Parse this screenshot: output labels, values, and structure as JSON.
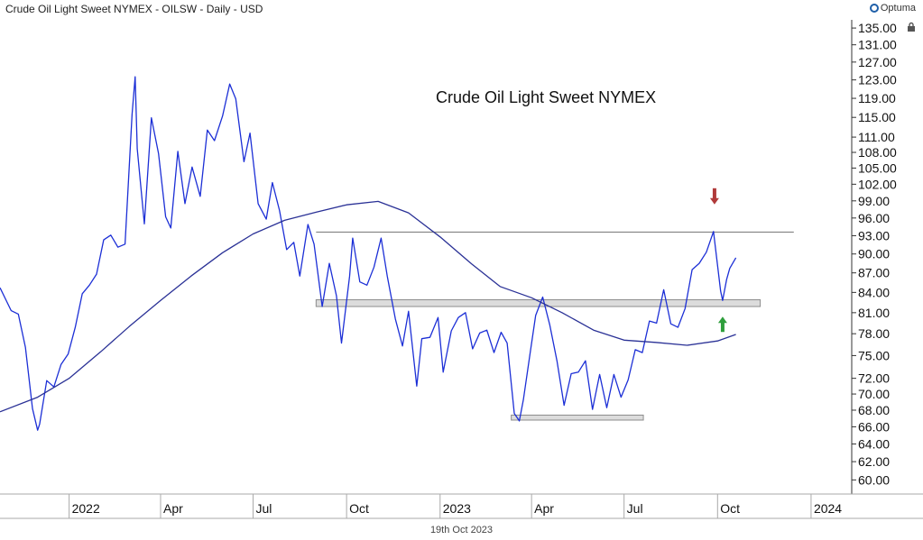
{
  "header": {
    "title": "Crude Oil Light Sweet NYMEX - OILSW - Daily - USD",
    "logo_text": "Optuma",
    "footer_date": "19th Oct 2023"
  },
  "colors": {
    "price": "#1c2fd6",
    "moving_average": "#2a3196",
    "resistance_line": "#888888",
    "support_band_fill": "#dcdcdc",
    "support_band_stroke": "#8c8c8c",
    "down_arrow": "#b03a3a",
    "up_arrow": "#2e9e3c"
  },
  "chart_data": {
    "type": "line",
    "title": "Crude Oil Light Sweet NYMEX",
    "xlabel": "",
    "ylabel": "",
    "y_scale": "log",
    "ylim": [
      58.5,
      137
    ],
    "xlim": [
      "2021-10-25",
      "2024-02-10"
    ],
    "y_ticks": [
      "60.00",
      "62.00",
      "64.00",
      "66.00",
      "68.00",
      "70.00",
      "72.00",
      "75.00",
      "78.00",
      "81.00",
      "84.00",
      "87.00",
      "90.00",
      "93.00",
      "96.00",
      "99.00",
      "102.00",
      "105.00",
      "108.00",
      "111.00",
      "115.00",
      "119.00",
      "123.00",
      "127.00",
      "131.00",
      "135.00"
    ],
    "x_ticks": [
      {
        "date": "2022-01-01",
        "label": "2022"
      },
      {
        "date": "2022-04-01",
        "label": "Apr"
      },
      {
        "date": "2022-07-01",
        "label": "Jul"
      },
      {
        "date": "2022-10-01",
        "label": "Oct"
      },
      {
        "date": "2023-01-01",
        "label": "2023"
      },
      {
        "date": "2023-04-01",
        "label": "Apr"
      },
      {
        "date": "2023-07-01",
        "label": "Jul"
      },
      {
        "date": "2023-10-01",
        "label": "Oct"
      },
      {
        "date": "2024-01-01",
        "label": "2024"
      }
    ],
    "series": [
      {
        "kind": "price",
        "points": [
          [
            "2021-10-25",
            84.7
          ],
          [
            "2021-11-05",
            81.3
          ],
          [
            "2021-11-12",
            80.8
          ],
          [
            "2021-11-19",
            76.1
          ],
          [
            "2021-11-26",
            68.2
          ],
          [
            "2021-12-01",
            65.6
          ],
          [
            "2021-12-03",
            66.3
          ],
          [
            "2021-12-10",
            71.7
          ],
          [
            "2021-12-17",
            70.9
          ],
          [
            "2021-12-24",
            73.8
          ],
          [
            "2021-12-31",
            75.2
          ],
          [
            "2022-01-07",
            78.9
          ],
          [
            "2022-01-14",
            83.8
          ],
          [
            "2022-01-21",
            85.1
          ],
          [
            "2022-01-28",
            86.8
          ],
          [
            "2022-02-04",
            92.3
          ],
          [
            "2022-02-11",
            93.1
          ],
          [
            "2022-02-18",
            91.1
          ],
          [
            "2022-02-25",
            91.6
          ],
          [
            "2022-03-04",
            115.7
          ],
          [
            "2022-03-07",
            123.7
          ],
          [
            "2022-03-09",
            108.7
          ],
          [
            "2022-03-16",
            95.0
          ],
          [
            "2022-03-23",
            114.9
          ],
          [
            "2022-03-30",
            107.8
          ],
          [
            "2022-04-06",
            96.2
          ],
          [
            "2022-04-11",
            94.3
          ],
          [
            "2022-04-18",
            108.2
          ],
          [
            "2022-04-25",
            98.5
          ],
          [
            "2022-05-02",
            105.2
          ],
          [
            "2022-05-10",
            99.8
          ],
          [
            "2022-05-17",
            112.4
          ],
          [
            "2022-05-24",
            110.3
          ],
          [
            "2022-06-01",
            115.3
          ],
          [
            "2022-06-08",
            122.1
          ],
          [
            "2022-06-14",
            118.9
          ],
          [
            "2022-06-22",
            106.2
          ],
          [
            "2022-06-28",
            111.8
          ],
          [
            "2022-07-06",
            98.5
          ],
          [
            "2022-07-14",
            95.8
          ],
          [
            "2022-07-20",
            102.3
          ],
          [
            "2022-07-27",
            97.3
          ],
          [
            "2022-08-03",
            90.7
          ],
          [
            "2022-08-10",
            91.9
          ],
          [
            "2022-08-16",
            86.5
          ],
          [
            "2022-08-24",
            94.9
          ],
          [
            "2022-08-30",
            91.6
          ],
          [
            "2022-09-07",
            81.9
          ],
          [
            "2022-09-14",
            88.5
          ],
          [
            "2022-09-21",
            83.5
          ],
          [
            "2022-09-26",
            76.7
          ],
          [
            "2022-10-04",
            86.5
          ],
          [
            "2022-10-07",
            92.6
          ],
          [
            "2022-10-14",
            85.6
          ],
          [
            "2022-10-21",
            85.1
          ],
          [
            "2022-10-28",
            87.9
          ],
          [
            "2022-11-04",
            92.6
          ],
          [
            "2022-11-10",
            86.5
          ],
          [
            "2022-11-18",
            80.1
          ],
          [
            "2022-11-25",
            76.3
          ],
          [
            "2022-12-01",
            81.2
          ],
          [
            "2022-12-09",
            71.0
          ],
          [
            "2022-12-14",
            77.3
          ],
          [
            "2022-12-22",
            77.5
          ],
          [
            "2022-12-30",
            80.3
          ],
          [
            "2023-01-04",
            72.8
          ],
          [
            "2023-01-12",
            78.4
          ],
          [
            "2023-01-19",
            80.3
          ],
          [
            "2023-01-26",
            81.0
          ],
          [
            "2023-02-02",
            75.9
          ],
          [
            "2023-02-09",
            78.1
          ],
          [
            "2023-02-16",
            78.5
          ],
          [
            "2023-02-23",
            75.4
          ],
          [
            "2023-03-02",
            78.2
          ],
          [
            "2023-03-08",
            76.7
          ],
          [
            "2023-03-15",
            67.6
          ],
          [
            "2023-03-20",
            66.7
          ],
          [
            "2023-03-24",
            69.3
          ],
          [
            "2023-03-31",
            75.7
          ],
          [
            "2023-04-05",
            80.6
          ],
          [
            "2023-04-12",
            83.3
          ],
          [
            "2023-04-19",
            79.2
          ],
          [
            "2023-04-26",
            74.3
          ],
          [
            "2023-05-03",
            68.6
          ],
          [
            "2023-05-10",
            72.6
          ],
          [
            "2023-05-17",
            72.8
          ],
          [
            "2023-05-24",
            74.3
          ],
          [
            "2023-05-31",
            68.1
          ],
          [
            "2023-06-07",
            72.5
          ],
          [
            "2023-06-14",
            68.3
          ],
          [
            "2023-06-21",
            72.5
          ],
          [
            "2023-06-28",
            69.6
          ],
          [
            "2023-07-05",
            71.8
          ],
          [
            "2023-07-12",
            75.8
          ],
          [
            "2023-07-19",
            75.4
          ],
          [
            "2023-07-26",
            79.8
          ],
          [
            "2023-08-02",
            79.5
          ],
          [
            "2023-08-09",
            84.4
          ],
          [
            "2023-08-16",
            79.4
          ],
          [
            "2023-08-23",
            78.9
          ],
          [
            "2023-08-30",
            81.6
          ],
          [
            "2023-09-06",
            87.5
          ],
          [
            "2023-09-13",
            88.5
          ],
          [
            "2023-09-20",
            90.3
          ],
          [
            "2023-09-27",
            93.7
          ],
          [
            "2023-10-04",
            84.2
          ],
          [
            "2023-10-06",
            82.8
          ],
          [
            "2023-10-10",
            86.0
          ],
          [
            "2023-10-13",
            87.7
          ],
          [
            "2023-10-19",
            89.4
          ]
        ]
      },
      {
        "kind": "moving_average",
        "points": [
          [
            "2021-10-25",
            67.8
          ],
          [
            "2021-12-01",
            69.6
          ],
          [
            "2022-01-01",
            72.0
          ],
          [
            "2022-02-01",
            75.5
          ],
          [
            "2022-03-01",
            79.0
          ],
          [
            "2022-04-01",
            82.8
          ],
          [
            "2022-05-01",
            86.5
          ],
          [
            "2022-06-01",
            90.2
          ],
          [
            "2022-07-01",
            93.3
          ],
          [
            "2022-08-01",
            95.6
          ],
          [
            "2022-09-01",
            97.0
          ],
          [
            "2022-10-01",
            98.3
          ],
          [
            "2022-11-01",
            98.9
          ],
          [
            "2022-12-01",
            96.9
          ],
          [
            "2023-01-01",
            92.8
          ],
          [
            "2023-02-01",
            88.4
          ],
          [
            "2023-03-01",
            84.9
          ],
          [
            "2023-04-01",
            83.2
          ],
          [
            "2023-05-01",
            81.0
          ],
          [
            "2023-06-01",
            78.5
          ],
          [
            "2023-07-01",
            77.1
          ],
          [
            "2023-08-01",
            76.8
          ],
          [
            "2023-09-01",
            76.4
          ],
          [
            "2023-10-01",
            77.0
          ],
          [
            "2023-10-19",
            77.9
          ]
        ]
      }
    ],
    "annotations": {
      "resistance_line": {
        "value": 93.6,
        "from": "2022-09-01",
        "to": "2023-12-15"
      },
      "support_band_upper": {
        "low": 81.9,
        "high": 82.9,
        "from": "2022-09-01",
        "to": "2023-11-12"
      },
      "support_band_lower": {
        "low": 66.8,
        "high": 67.4,
        "from": "2023-03-12",
        "to": "2023-07-20"
      },
      "down_arrow": {
        "date": "2023-09-28",
        "value": 99.0
      },
      "up_arrow": {
        "date": "2023-10-06",
        "value": 78.5
      }
    }
  }
}
